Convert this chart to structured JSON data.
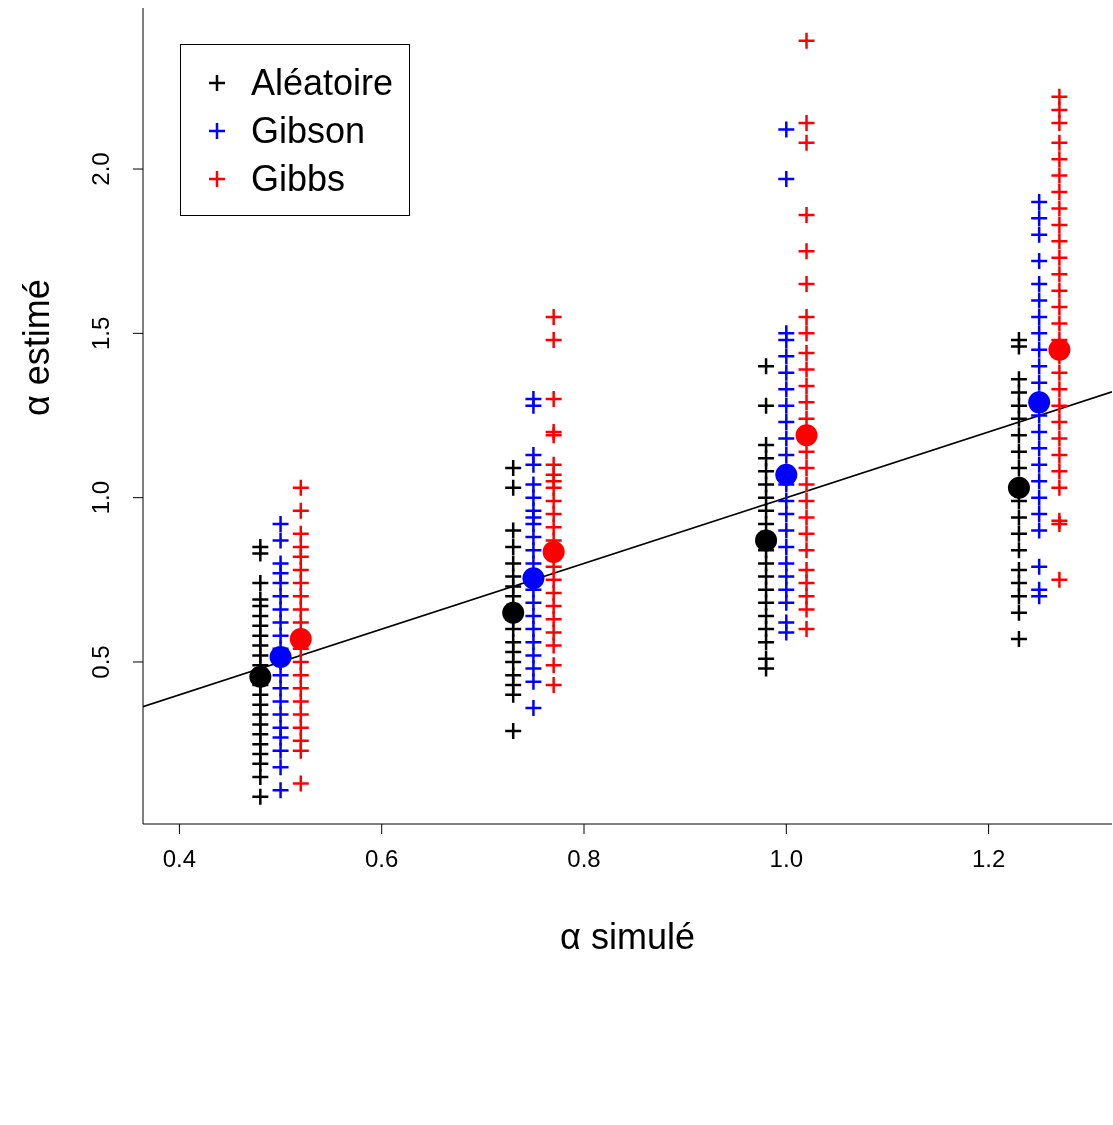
{
  "chart_data": {
    "type": "scatter",
    "xlabel": "α simulé",
    "ylabel": "α estimé",
    "xlim": [
      0.364,
      1.322
    ],
    "ylim": [
      0.007,
      2.49
    ],
    "xticks": [
      0.4,
      0.6,
      0.8,
      {
        "value": 1,
        "label": "1.0"
      },
      1.2
    ],
    "yticks": [
      0.5,
      {
        "value": 1,
        "label": "1.0"
      },
      1.5,
      {
        "value": 2,
        "label": "2.0"
      }
    ],
    "legend": "top left",
    "series": [
      {
        "name": "Aléatoire",
        "color": "#000000",
        "marker": "cross",
        "x": [
          0.48,
          0.48,
          0.48,
          0.48,
          0.48,
          0.48,
          0.48,
          0.48,
          0.48,
          0.48,
          0.48,
          0.48,
          0.48,
          0.48,
          0.48,
          0.48,
          0.48,
          0.48,
          0.48,
          0.48,
          0.48,
          0.48,
          0.73,
          0.73,
          0.73,
          0.73,
          0.73,
          0.73,
          0.73,
          0.73,
          0.73,
          0.73,
          0.73,
          0.73,
          0.73,
          0.73,
          0.73,
          0.73,
          0.73,
          0.73,
          0.98,
          0.98,
          0.98,
          0.98,
          0.98,
          0.98,
          0.98,
          0.98,
          0.98,
          0.98,
          0.98,
          0.98,
          0.98,
          0.98,
          0.98,
          0.98,
          0.98,
          0.98,
          0.98,
          0.98,
          1.23,
          1.23,
          1.23,
          1.23,
          1.23,
          1.23,
          1.23,
          1.23,
          1.23,
          1.23,
          1.23,
          1.23,
          1.23,
          1.23,
          1.23,
          1.23,
          1.23,
          1.23,
          1.23
        ],
        "values": [
          0.09,
          0.15,
          0.19,
          0.22,
          0.25,
          0.28,
          0.31,
          0.34,
          0.37,
          0.4,
          0.43,
          0.49,
          0.52,
          0.55,
          0.58,
          0.61,
          0.64,
          0.67,
          0.69,
          0.74,
          0.83,
          0.85,
          0.29,
          0.4,
          0.43,
          0.46,
          0.5,
          0.53,
          0.56,
          0.6,
          0.63,
          0.66,
          0.7,
          0.73,
          0.76,
          0.8,
          0.85,
          0.9,
          1.03,
          1.09,
          0.48,
          0.51,
          0.56,
          0.6,
          0.64,
          0.68,
          0.72,
          0.76,
          0.8,
          0.84,
          0.88,
          0.92,
          0.96,
          1.0,
          1.04,
          1.08,
          1.12,
          1.16,
          1.28,
          1.4,
          0.57,
          0.65,
          0.7,
          0.74,
          0.78,
          0.84,
          0.89,
          0.94,
          0.99,
          1.04,
          1.09,
          1.14,
          1.19,
          1.24,
          1.28,
          1.32,
          1.36,
          1.46,
          1.48
        ]
      },
      {
        "name": "Gibson",
        "color": "#0000ff",
        "marker": "cross",
        "x": [
          0.5,
          0.5,
          0.5,
          0.5,
          0.5,
          0.5,
          0.5,
          0.5,
          0.5,
          0.5,
          0.5,
          0.5,
          0.5,
          0.5,
          0.5,
          0.5,
          0.5,
          0.5,
          0.5,
          0.5,
          0.75,
          0.75,
          0.75,
          0.75,
          0.75,
          0.75,
          0.75,
          0.75,
          0.75,
          0.75,
          0.75,
          0.75,
          0.75,
          0.75,
          0.75,
          0.75,
          0.75,
          0.75,
          0.75,
          0.75,
          0.75,
          1.0,
          1.0,
          1.0,
          1.0,
          1.0,
          1.0,
          1.0,
          1.0,
          1.0,
          1.0,
          1.0,
          1.0,
          1.0,
          1.0,
          1.0,
          1.0,
          1.0,
          1.0,
          1.0,
          1.0,
          1.0,
          1.0,
          1.0,
          1.25,
          1.25,
          1.25,
          1.25,
          1.25,
          1.25,
          1.25,
          1.25,
          1.25,
          1.25,
          1.25,
          1.25,
          1.25,
          1.25,
          1.25,
          1.25,
          1.25,
          1.25,
          1.25,
          1.25,
          1.25,
          1.25,
          1.25
        ],
        "values": [
          0.11,
          0.18,
          0.23,
          0.27,
          0.3,
          0.34,
          0.38,
          0.42,
          0.46,
          0.5,
          0.54,
          0.58,
          0.62,
          0.66,
          0.7,
          0.74,
          0.77,
          0.8,
          0.87,
          0.92,
          0.94,
          0.36,
          0.44,
          0.48,
          0.52,
          0.56,
          0.6,
          0.64,
          0.68,
          0.72,
          0.8,
          0.84,
          0.88,
          0.92,
          0.96,
          1.0,
          1.04,
          1.1,
          1.13,
          1.28,
          1.3,
          0.59,
          0.62,
          0.68,
          0.72,
          0.76,
          0.8,
          0.85,
          0.9,
          0.95,
          0.99,
          1.04,
          1.08,
          1.13,
          1.18,
          1.23,
          1.28,
          1.33,
          1.38,
          1.43,
          1.48,
          1.5,
          1.97,
          2.12,
          0.7,
          0.72,
          0.79,
          0.9,
          0.95,
          1.0,
          1.05,
          1.1,
          1.15,
          1.2,
          1.25,
          1.3,
          1.35,
          1.4,
          1.45,
          1.5,
          1.55,
          1.6,
          1.65,
          1.72,
          1.8,
          1.85,
          1.9
        ]
      },
      {
        "name": "Gibbs",
        "color": "#ff0000",
        "marker": "cross",
        "x": [
          0.52,
          0.52,
          0.52,
          0.52,
          0.52,
          0.52,
          0.52,
          0.52,
          0.52,
          0.52,
          0.52,
          0.52,
          0.52,
          0.52,
          0.52,
          0.52,
          0.52,
          0.52,
          0.52,
          0.52,
          0.52,
          0.77,
          0.77,
          0.77,
          0.77,
          0.77,
          0.77,
          0.77,
          0.77,
          0.77,
          0.77,
          0.77,
          0.77,
          0.77,
          0.77,
          0.77,
          0.77,
          0.77,
          0.77,
          0.77,
          0.77,
          0.77,
          0.77,
          1.02,
          1.02,
          1.02,
          1.02,
          1.02,
          1.02,
          1.02,
          1.02,
          1.02,
          1.02,
          1.02,
          1.02,
          1.02,
          1.02,
          1.02,
          1.02,
          1.02,
          1.02,
          1.02,
          1.02,
          1.02,
          1.02,
          1.02,
          1.02,
          1.02,
          1.27,
          1.27,
          1.27,
          1.27,
          1.27,
          1.27,
          1.27,
          1.27,
          1.27,
          1.27,
          1.27,
          1.27,
          1.27,
          1.27,
          1.27,
          1.27,
          1.27,
          1.27,
          1.27,
          1.27,
          1.27,
          1.27,
          1.27,
          1.27,
          1.27,
          1.27,
          1.27,
          1.27
        ],
        "values": [
          0.13,
          0.23,
          0.26,
          0.3,
          0.34,
          0.38,
          0.42,
          0.46,
          0.5,
          0.54,
          0.58,
          0.62,
          0.66,
          0.7,
          0.74,
          0.78,
          0.82,
          0.85,
          0.89,
          0.96,
          1.03,
          1.05,
          0.43,
          0.49,
          0.55,
          0.59,
          0.63,
          0.67,
          0.71,
          0.75,
          0.79,
          0.87,
          0.91,
          0.95,
          0.99,
          1.03,
          1.07,
          1.1,
          1.19,
          1.2,
          1.3,
          1.48,
          1.55,
          0.6,
          0.66,
          0.7,
          0.74,
          0.78,
          0.84,
          0.89,
          0.94,
          0.99,
          1.04,
          1.09,
          1.14,
          1.24,
          1.29,
          1.34,
          1.39,
          1.44,
          1.5,
          1.55,
          1.65,
          1.75,
          1.86,
          2.08,
          2.14,
          2.39,
          0.75,
          0.92,
          0.93,
          1.03,
          1.08,
          1.13,
          1.18,
          1.23,
          1.28,
          1.33,
          1.38,
          1.43,
          1.48,
          1.53,
          1.58,
          1.63,
          1.68,
          1.73,
          1.78,
          1.83,
          1.88,
          1.93,
          1.98,
          2.03,
          2.08,
          2.14,
          2.18,
          2.22
        ]
      },
      {
        "color": "#000000",
        "marker": "circle",
        "x": [
          0.48,
          0.73,
          0.98,
          1.23
        ],
        "values": [
          0.455,
          0.65,
          0.87,
          1.03
        ]
      },
      {
        "color": "#0000ff",
        "marker": "circle",
        "x": [
          0.5,
          0.75,
          1.0,
          1.25
        ],
        "values": [
          0.515,
          0.755,
          1.07,
          1.29
        ]
      },
      {
        "color": "#ff0000",
        "marker": "circle",
        "x": [
          0.52,
          0.77,
          1.02,
          1.27
        ],
        "values": [
          0.57,
          0.835,
          1.19,
          1.45
        ]
      },
      {
        "type": "line",
        "color": "#000000",
        "marker": "none",
        "line_style": "solid",
        "x": [
          0.364,
          1.322
        ],
        "values": [
          0.364,
          1.322
        ]
      }
    ]
  }
}
